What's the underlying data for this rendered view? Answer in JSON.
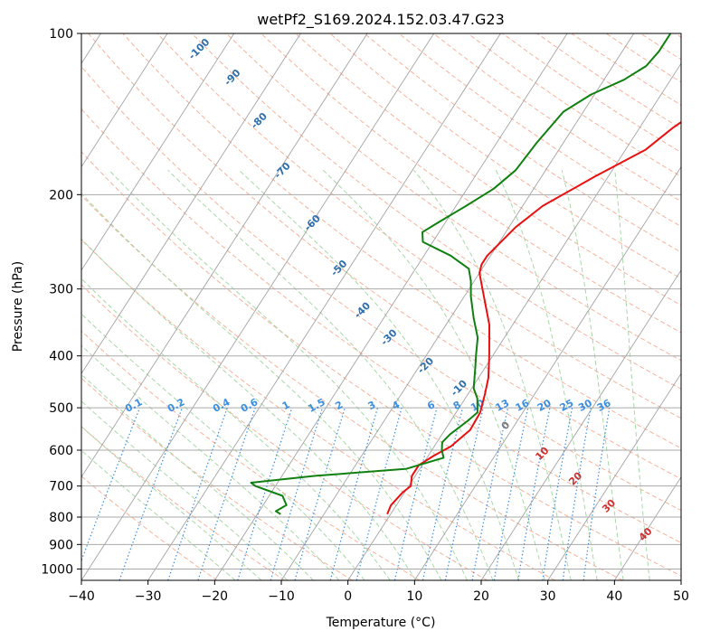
{
  "chart_data": {
    "type": "line",
    "subtype": "skew-t log-p diagram",
    "title": "wetPf2_S169.2024.152.03.47.G23",
    "xlabel": "Temperature (°C)",
    "ylabel": "Pressure (hPa)",
    "xlim": [
      -40,
      50
    ],
    "ylim": [
      1050,
      100
    ],
    "y_scale": "log",
    "grid": true,
    "x_ticks": [
      -40,
      -30,
      -20,
      -10,
      0,
      10,
      20,
      30,
      40,
      50
    ],
    "y_ticks": [
      100,
      200,
      300,
      400,
      500,
      600,
      700,
      800,
      900,
      1000
    ],
    "series": [
      {
        "color": "#e81010",
        "points": [
          [
            -0.5,
            790
          ],
          [
            -0.8,
            760
          ],
          [
            -0.3,
            720
          ],
          [
            0.3,
            700
          ],
          [
            -0.5,
            670
          ],
          [
            -0.5,
            640
          ],
          [
            0.8,
            615
          ],
          [
            2.5,
            590
          ],
          [
            3.8,
            550
          ],
          [
            3.6,
            510
          ],
          [
            2.5,
            470
          ],
          [
            1.5,
            440
          ],
          [
            -0.5,
            400
          ],
          [
            -3.5,
            350
          ],
          [
            -8.0,
            300
          ],
          [
            -10.0,
            280
          ],
          [
            -10.5,
            270
          ],
          [
            -10.5,
            260
          ],
          [
            -9.0,
            230
          ],
          [
            -7.0,
            210
          ],
          [
            -2.0,
            185
          ],
          [
            3.0,
            165
          ],
          [
            5.0,
            150
          ],
          [
            8.0,
            135
          ],
          [
            15.0,
            120
          ],
          [
            20.0,
            112
          ],
          [
            24.0,
            107
          ],
          [
            27.0,
            100
          ]
        ]
      },
      {
        "color": "#108010",
        "points": [
          [
            -16.5,
            790
          ],
          [
            -17.5,
            780
          ],
          [
            -16.5,
            760
          ],
          [
            -18.0,
            730
          ],
          [
            -23.0,
            700
          ],
          [
            -24.0,
            690
          ],
          [
            -15.0,
            670
          ],
          [
            -2.0,
            650
          ],
          [
            2.5,
            620
          ],
          [
            1.5,
            600
          ],
          [
            0.8,
            580
          ],
          [
            1.2,
            560
          ],
          [
            2.5,
            530
          ],
          [
            3.2,
            510
          ],
          [
            1.8,
            480
          ],
          [
            0.3,
            460
          ],
          [
            -1.5,
            420
          ],
          [
            -2.5,
            400
          ],
          [
            -4.0,
            370
          ],
          [
            -6.5,
            340
          ],
          [
            -9.0,
            310
          ],
          [
            -10.5,
            290
          ],
          [
            -12.0,
            275
          ],
          [
            -16.0,
            260
          ],
          [
            -21.5,
            245
          ],
          [
            -22.5,
            235
          ],
          [
            -21.0,
            225
          ],
          [
            -18.5,
            210
          ],
          [
            -16.0,
            195
          ],
          [
            -14.5,
            180
          ],
          [
            -14.0,
            160
          ],
          [
            -13.0,
            140
          ],
          [
            -10.5,
            130
          ],
          [
            -7.0,
            122
          ],
          [
            -5.0,
            115
          ],
          [
            -4.5,
            108
          ],
          [
            -4.5,
            100
          ]
        ]
      }
    ],
    "dry_adiabat_labels": [
      "-100",
      "-90",
      "-80",
      "-70",
      "-60",
      "-50",
      "-40",
      "-30",
      "-20",
      "-10"
    ],
    "moist_adiabat_labels": [
      "0",
      "10",
      "20",
      "30",
      "40"
    ],
    "mixing_ratio_labels": [
      "0.1",
      "0.2",
      "0.4",
      "0.6",
      "1",
      "1.5",
      "2",
      "3",
      "4",
      "6",
      "8",
      "10",
      "13",
      "16",
      "20",
      "25",
      "30",
      "36"
    ],
    "mixing_ratio_values": [
      0.1,
      0.2,
      0.4,
      0.6,
      1,
      1.5,
      2,
      3,
      4,
      6,
      8,
      10,
      13,
      16,
      20,
      25,
      30,
      36
    ],
    "colors": {
      "temperature": "#e81010",
      "dewpoint": "#108010",
      "dry_adiabats": "#f4a58a",
      "moist_adiabats": "#9fd49f",
      "mixing_ratio": "#3b8fe0",
      "isotherms": "#9a9a9a",
      "grid": "#aaaaaa"
    }
  }
}
